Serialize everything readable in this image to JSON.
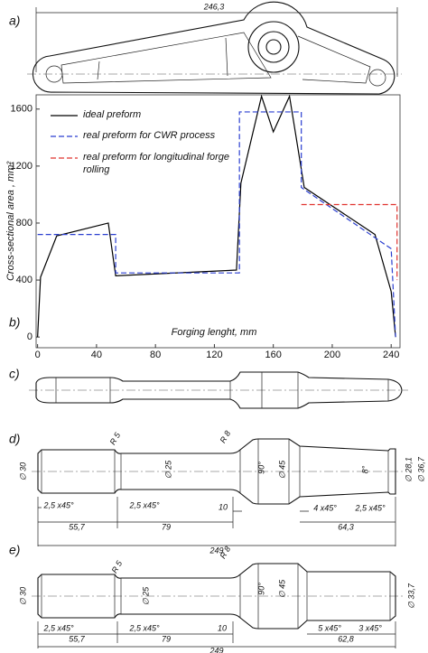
{
  "panels": [
    "a)",
    "b)",
    "c)",
    "d)",
    "e)"
  ],
  "drawing_a": {
    "dimension": "246,3"
  },
  "chart_data": {
    "type": "line",
    "ylabel": "Cross-sectional area , mm²",
    "xlabel": "Forging lenght, mm",
    "xlim": [
      -1,
      246
    ],
    "ylim": [
      -75,
      1700
    ],
    "xticks": [
      0,
      40,
      80,
      120,
      160,
      200,
      240
    ],
    "yticks": [
      0,
      400,
      800,
      1200,
      1600
    ],
    "legend": "upper left",
    "series": [
      {
        "name": "ideal preform",
        "color": "#000000",
        "dash": "solid",
        "x": [
          0,
          2,
          13,
          48,
          53,
          135,
          138,
          152,
          160,
          171,
          181,
          229,
          240,
          243
        ],
        "values": [
          0,
          420,
          710,
          800,
          430,
          470,
          1080,
          1690,
          1440,
          1690,
          1050,
          720,
          320,
          0
        ]
      },
      {
        "name": "real preform for CWR process",
        "color": "#2b3fd0",
        "dash": "dashed",
        "x": [
          0,
          53,
          53,
          137,
          137,
          179,
          179,
          240,
          243
        ],
        "values": [
          720,
          720,
          450,
          450,
          1580,
          1580,
          1050,
          620,
          0
        ]
      },
      {
        "name": "real preform for longitudinal forge rolling",
        "color": "#e0332f",
        "dash": "dashed",
        "x": [
          179,
          244,
          244
        ],
        "values": [
          930,
          930,
          400
        ]
      }
    ]
  },
  "drawing_d": {
    "labels": [
      "R 5",
      "R 8",
      "∅ 30",
      "∅ 25",
      "90°",
      "∅ 45",
      "8°",
      "∅ 28,1",
      "∅ 36,7",
      "2,5 x45°",
      "55,7",
      "2,5 x45°",
      "79",
      "10",
      "4 x45°",
      "2,5 x45°",
      "64,3",
      "249"
    ]
  },
  "drawing_e": {
    "labels": [
      "R 5",
      "R 8",
      "∅ 30",
      "∅ 25",
      "90°",
      "∅ 45",
      "∅ 33,7",
      "2,5 x45°",
      "55,7",
      "2,5 x45°",
      "79",
      "10",
      "5 x45°",
      "3 x45°",
      "62,8",
      "249"
    ]
  }
}
